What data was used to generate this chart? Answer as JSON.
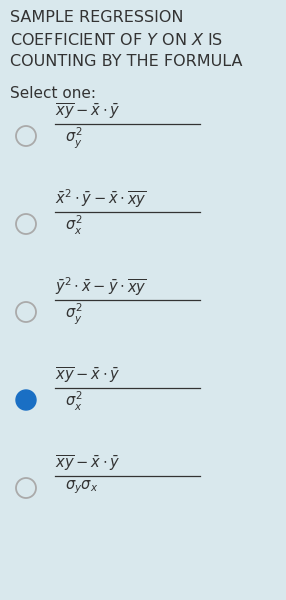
{
  "bg_color": "#d9e8ed",
  "text_color": "#333333",
  "circle_unsel_color": "#aaaaaa",
  "circle_sel_color": "#1a6fc4",
  "title_lines": [
    "SAMPLE REGRESSION",
    "COEFFICIENT OF $Y$ ON $X$ IS",
    "COUNTING BY THE FORMULA"
  ],
  "select_label": "Select one:",
  "options": [
    {
      "selected": false,
      "numerator": "$\\overline{xy}-\\bar{x}\\cdot \\bar{y}$",
      "denominator": "$\\sigma_{y}^{2}$"
    },
    {
      "selected": false,
      "numerator": "$\\bar{x}^{2}\\cdot\\bar{y}-\\bar{x}\\cdot\\overline{xy}$",
      "denominator": "$\\sigma_{x}^{2}$"
    },
    {
      "selected": false,
      "numerator": "$\\bar{y}^{2}\\cdot\\bar{x}-\\bar{y}\\cdot\\overline{xy}$",
      "denominator": "$\\sigma_{y}^{2}$"
    },
    {
      "selected": true,
      "numerator": "$\\overline{xy}-\\bar{x}\\cdot\\bar{y}$",
      "denominator": "$\\sigma_{x}^{2}$"
    },
    {
      "selected": false,
      "numerator": "$\\overline{xy}-\\bar{x}\\cdot\\bar{y}$",
      "denominator": "$\\sigma_{y}\\sigma_{x}$"
    }
  ]
}
